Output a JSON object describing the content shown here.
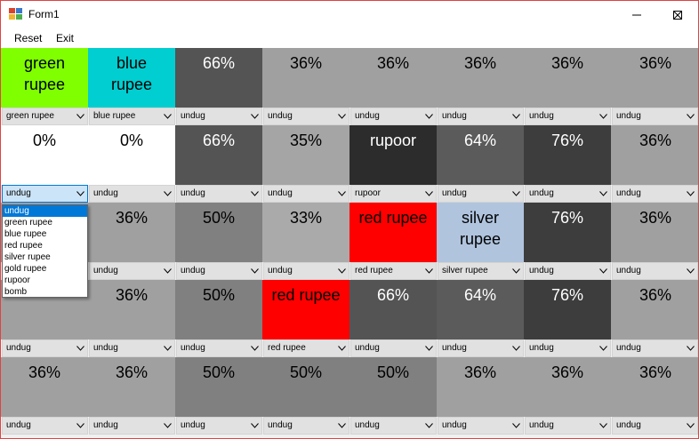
{
  "window": {
    "title": "Form1"
  },
  "menu": [
    {
      "label": "Reset"
    },
    {
      "label": "Exit"
    }
  ],
  "colors": {
    "undug": "#a0a0a0",
    "green": "#80ff00",
    "blue": "#00ced1",
    "red": "#ff0000",
    "silver": "#b0c4de",
    "white": "#ffffff"
  },
  "rows": [
    [
      {
        "text": "green\nrupee",
        "color": "#80ff00",
        "fg": "#000000",
        "select": "green rupee"
      },
      {
        "text": "blue\nrupee",
        "color": "#00ced1",
        "fg": "#000000",
        "select": "blue rupee"
      },
      {
        "text": "66%",
        "color": "#545454",
        "fg": "#ffffff",
        "select": "undug"
      },
      {
        "text": "36%",
        "color": "#a0a0a0",
        "fg": "#000000",
        "select": "undug"
      },
      {
        "text": "36%",
        "color": "#a0a0a0",
        "fg": "#000000",
        "select": "undug"
      },
      {
        "text": "36%",
        "color": "#a0a0a0",
        "fg": "#000000",
        "select": "undug"
      },
      {
        "text": "36%",
        "color": "#a0a0a0",
        "fg": "#000000",
        "select": "undug"
      },
      {
        "text": "36%",
        "color": "#a0a0a0",
        "fg": "#000000",
        "select": "undug"
      }
    ],
    [
      {
        "text": "0%",
        "color": "#ffffff",
        "fg": "#000000",
        "select": "undug"
      },
      {
        "text": "0%",
        "color": "#ffffff",
        "fg": "#000000",
        "select": "undug"
      },
      {
        "text": "66%",
        "color": "#545454",
        "fg": "#ffffff",
        "select": "undug"
      },
      {
        "text": "35%",
        "color": "#a5a5a5",
        "fg": "#000000",
        "select": "undug"
      },
      {
        "text": "rupoor",
        "color": "#2c2c2c",
        "fg": "#ffffff",
        "select": "rupoor"
      },
      {
        "text": "64%",
        "color": "#5b5b5b",
        "fg": "#ffffff",
        "select": "undug"
      },
      {
        "text": "76%",
        "color": "#3d3d3d",
        "fg": "#ffffff",
        "select": "undug"
      },
      {
        "text": "36%",
        "color": "#a0a0a0",
        "fg": "#000000",
        "select": "undug"
      }
    ],
    [
      {
        "text": "",
        "color": "#a0a0a0",
        "fg": "#000000",
        "select": "undug"
      },
      {
        "text": "36%",
        "color": "#a0a0a0",
        "fg": "#000000",
        "select": "undug"
      },
      {
        "text": "50%",
        "color": "#808080",
        "fg": "#000000",
        "select": "undug"
      },
      {
        "text": "33%",
        "color": "#aaaaaa",
        "fg": "#000000",
        "select": "undug"
      },
      {
        "text": "red rupee",
        "color": "#ff0000",
        "fg": "#000000",
        "select": "red rupee"
      },
      {
        "text": "silver\nrupee",
        "color": "#b0c4de",
        "fg": "#000000",
        "select": "silver rupee"
      },
      {
        "text": "76%",
        "color": "#3d3d3d",
        "fg": "#ffffff",
        "select": "undug"
      },
      {
        "text": "36%",
        "color": "#a0a0a0",
        "fg": "#000000",
        "select": "undug"
      }
    ],
    [
      {
        "text": "",
        "color": "#a0a0a0",
        "fg": "#000000",
        "select": "undug"
      },
      {
        "text": "36%",
        "color": "#a0a0a0",
        "fg": "#000000",
        "select": "undug"
      },
      {
        "text": "50%",
        "color": "#808080",
        "fg": "#000000",
        "select": "undug"
      },
      {
        "text": "red rupee",
        "color": "#ff0000",
        "fg": "#000000",
        "select": "red rupee"
      },
      {
        "text": "66%",
        "color": "#545454",
        "fg": "#ffffff",
        "select": "undug"
      },
      {
        "text": "64%",
        "color": "#5b5b5b",
        "fg": "#ffffff",
        "select": "undug"
      },
      {
        "text": "76%",
        "color": "#3d3d3d",
        "fg": "#ffffff",
        "select": "undug"
      },
      {
        "text": "36%",
        "color": "#a0a0a0",
        "fg": "#000000",
        "select": "undug"
      }
    ],
    [
      {
        "text": "36%",
        "color": "#a0a0a0",
        "fg": "#000000",
        "select": "undug"
      },
      {
        "text": "36%",
        "color": "#a0a0a0",
        "fg": "#000000",
        "select": "undug"
      },
      {
        "text": "50%",
        "color": "#808080",
        "fg": "#000000",
        "select": "undug"
      },
      {
        "text": "50%",
        "color": "#808080",
        "fg": "#000000",
        "select": "undug"
      },
      {
        "text": "50%",
        "color": "#808080",
        "fg": "#000000",
        "select": "undug"
      },
      {
        "text": "36%",
        "color": "#a0a0a0",
        "fg": "#000000",
        "select": "undug"
      },
      {
        "text": "36%",
        "color": "#a0a0a0",
        "fg": "#000000",
        "select": "undug"
      },
      {
        "text": "36%",
        "color": "#a0a0a0",
        "fg": "#000000",
        "select": "undug"
      }
    ]
  ],
  "open_combo": {
    "row": 1,
    "col": 0
  },
  "dropdown_options": [
    "undug",
    "green rupee",
    "blue rupee",
    "red rupee",
    "silver rupee",
    "gold rupee",
    "rupoor",
    "bomb"
  ],
  "dropdown_selected": "undug"
}
